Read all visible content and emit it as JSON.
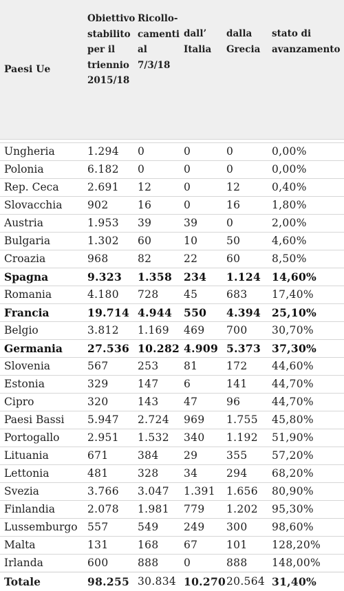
{
  "headers": [
    [
      "Paesi Ue"
    ],
    [
      "Obiettivo",
      "stabilito",
      "per il",
      "triennio",
      "2015/18"
    ],
    [
      "Ricollo-",
      "camenti",
      "al",
      "7/3/18"
    ],
    [
      "dall’",
      "Italia"
    ],
    [
      "dalla",
      "Grecia"
    ],
    [
      "stato di",
      "avanzamento"
    ]
  ],
  "rows": [
    {
      "bold": false,
      "cells": [
        "Ungheria",
        "1.294",
        "0",
        "0",
        "0",
        "0,00%"
      ]
    },
    {
      "bold": false,
      "cells": [
        "Polonia",
        "6.182",
        "0",
        "0",
        "0",
        "0,00%"
      ]
    },
    {
      "bold": false,
      "cells": [
        "Rep. Ceca",
        "2.691",
        "12",
        "0",
        "12",
        "0,40%"
      ]
    },
    {
      "bold": false,
      "cells": [
        "Slovacchia",
        "902",
        "16",
        "0",
        "16",
        "1,80%"
      ]
    },
    {
      "bold": false,
      "cells": [
        "Austria",
        "1.953",
        "39",
        "39",
        "0",
        "2,00%"
      ]
    },
    {
      "bold": false,
      "cells": [
        "Bulgaria",
        "1.302",
        "60",
        "10",
        "50",
        "4,60%"
      ]
    },
    {
      "bold": false,
      "cells": [
        "Croazia",
        "968",
        "82",
        "22",
        "60",
        "8,50%"
      ]
    },
    {
      "bold": true,
      "cells": [
        "Spagna",
        "9.323",
        "1.358",
        "234",
        "1.124",
        "14,60%"
      ]
    },
    {
      "bold": false,
      "cells": [
        "Romania",
        "4.180",
        "728",
        "45",
        "683",
        "17,40%"
      ]
    },
    {
      "bold": true,
      "cells": [
        "Francia",
        "19.714",
        "4.944",
        "550",
        "4.394",
        "25,10%"
      ]
    },
    {
      "bold": false,
      "cells": [
        "Belgio",
        "3.812",
        "1.169",
        "469",
        "700",
        "30,70%"
      ]
    },
    {
      "bold": true,
      "cells": [
        "Germania",
        "27.536",
        "10.282",
        "4.909",
        "5.373",
        "37,30%"
      ]
    },
    {
      "bold": false,
      "cells": [
        "Slovenia",
        "567",
        "253",
        "81",
        "172",
        "44,60%"
      ]
    },
    {
      "bold": false,
      "cells": [
        "Estonia",
        "329",
        "147",
        "6",
        "141",
        "44,70%"
      ]
    },
    {
      "bold": false,
      "cells": [
        "Cipro",
        "320",
        "143",
        "47",
        "96",
        "44,70%"
      ]
    },
    {
      "bold": false,
      "cells": [
        "Paesi Bassi",
        "5.947",
        "2.724",
        "969",
        "1.755",
        "45,80%"
      ]
    },
    {
      "bold": false,
      "cells": [
        "Portogallo",
        "2.951",
        "1.532",
        "340",
        "1.192",
        "51,90%"
      ]
    },
    {
      "bold": false,
      "cells": [
        "Lituania",
        "671",
        "384",
        "29",
        "355",
        "57,20%"
      ]
    },
    {
      "bold": false,
      "cells": [
        "Lettonia",
        "481",
        "328",
        "34",
        "294",
        "68,20%"
      ]
    },
    {
      "bold": false,
      "cells": [
        "Svezia",
        "3.766",
        "3.047",
        "1.391",
        "1.656",
        "80,90%"
      ]
    },
    {
      "bold": false,
      "cells": [
        "Finlandia",
        "2.078",
        "1.981",
        "779",
        "1.202",
        "95,30%"
      ]
    },
    {
      "bold": false,
      "cells": [
        "Lussemburgo",
        "557",
        "549",
        "249",
        "300",
        "98,60%"
      ]
    },
    {
      "bold": false,
      "cells": [
        "Malta",
        "131",
        "168",
        "67",
        "101",
        "128,20%"
      ]
    },
    {
      "bold": false,
      "cells": [
        "Irlanda",
        "600",
        "888",
        "0",
        "888",
        "148,00%"
      ]
    }
  ],
  "total": {
    "cells": [
      "Totale",
      "98.255",
      "30.834",
      "10.270",
      "20.564",
      "31,40%"
    ],
    "bold_flags": [
      true,
      true,
      false,
      true,
      false,
      true
    ]
  }
}
